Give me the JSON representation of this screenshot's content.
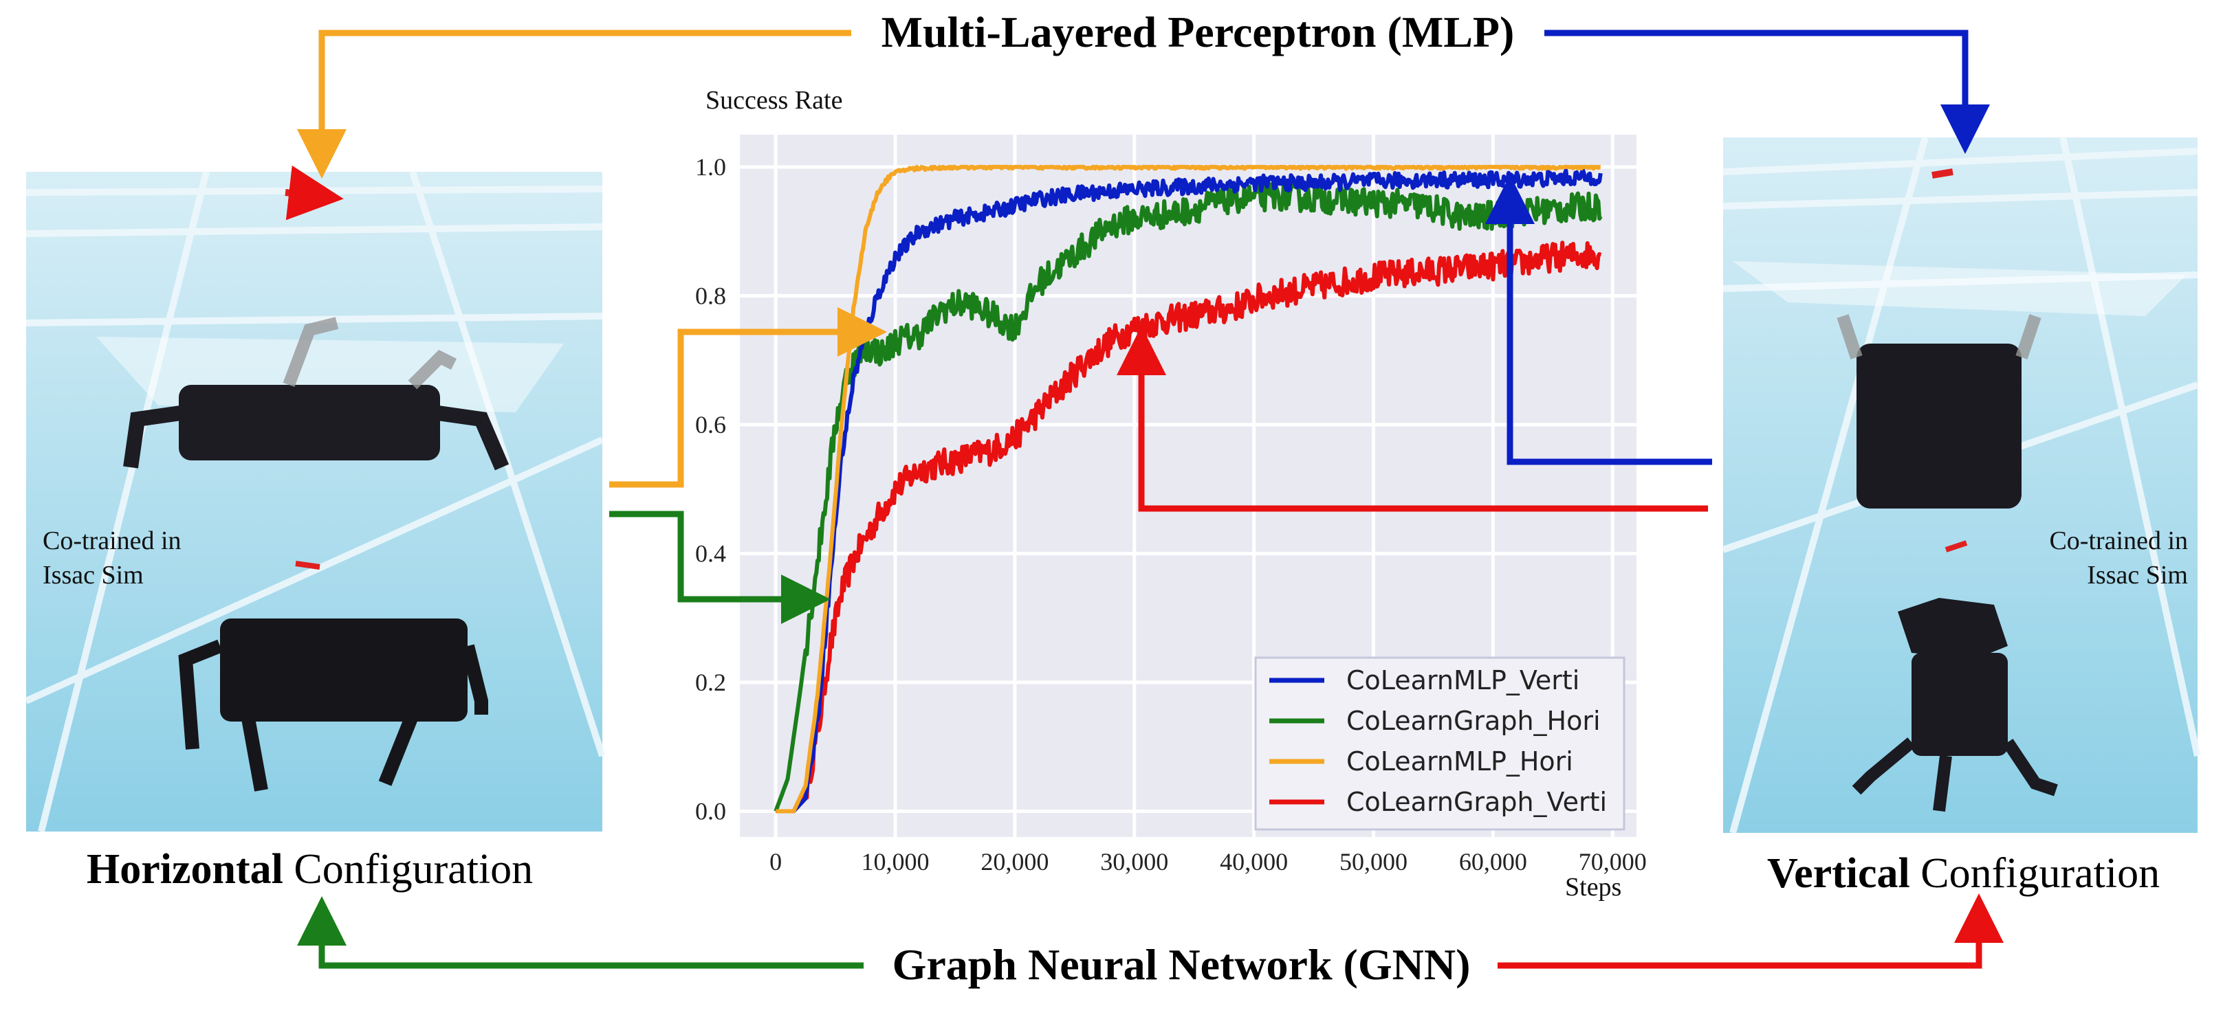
{
  "top_title": "Multi-Layered Perceptron (MLP)",
  "bottom_title": "Graph Neural Network (GNN)",
  "left_panel": {
    "caption_bold": "Horizontal",
    "caption_rest": " Configuration",
    "note_line1": "Co-trained in",
    "note_line2": "Issac Sim"
  },
  "right_panel": {
    "caption_bold": "Vertical",
    "caption_rest": " Configuration",
    "note_line1": "Co-trained in",
    "note_line2": "Issac Sim"
  },
  "colors": {
    "mlp_arrow": "#f5a623",
    "blue": "#0a1fc4",
    "green": "#1a7f1a",
    "red": "#e81010",
    "orange": "#f5a623",
    "plot_bg": "#e9e9f2",
    "sky": "#a9dcec"
  },
  "chart_data": {
    "type": "line",
    "title": "Success Rate",
    "xlabel": "Steps",
    "ylabel": "Success Rate",
    "xlim": [
      -3000,
      72000
    ],
    "ylim": [
      -0.04,
      1.05
    ],
    "xticks": [
      0,
      10000,
      20000,
      30000,
      40000,
      50000,
      60000,
      70000
    ],
    "xtick_labels": [
      "0",
      "10,000",
      "20,000",
      "30,000",
      "40,000",
      "50,000",
      "60,000",
      "70,000"
    ],
    "yticks": [
      0.0,
      0.2,
      0.4,
      0.6,
      0.8,
      1.0
    ],
    "ytick_labels": [
      "0.0",
      "0.2",
      "0.4",
      "0.6",
      "0.8",
      "1.0"
    ],
    "grid": true,
    "legend_position": "bottom-right",
    "series": [
      {
        "name": "CoLearnMLP_Verti",
        "color": "#0a1fc4",
        "x": [
          0,
          1500,
          2500,
          3500,
          4500,
          5500,
          6500,
          7500,
          8500,
          10000,
          12000,
          15000,
          18000,
          22000,
          26000,
          30000,
          35000,
          40000,
          45000,
          50000,
          55000,
          60000,
          65000,
          69000
        ],
        "y": [
          0.0,
          0.0,
          0.02,
          0.14,
          0.35,
          0.55,
          0.67,
          0.74,
          0.8,
          0.86,
          0.9,
          0.92,
          0.93,
          0.95,
          0.96,
          0.965,
          0.97,
          0.975,
          0.975,
          0.978,
          0.98,
          0.98,
          0.982,
          0.985
        ]
      },
      {
        "name": "CoLearnGraph_Hori",
        "color": "#1a7f1a",
        "x": [
          0,
          1000,
          2000,
          3000,
          4000,
          5000,
          6000,
          7000,
          8000,
          9000,
          10000,
          12000,
          14000,
          16000,
          18000,
          20000,
          22000,
          24000,
          26000,
          28000,
          30000,
          34000,
          38000,
          42000,
          46000,
          50000,
          54000,
          58000,
          62000,
          66000,
          69000
        ],
        "y": [
          0.0,
          0.05,
          0.18,
          0.32,
          0.46,
          0.6,
          0.68,
          0.71,
          0.72,
          0.71,
          0.73,
          0.74,
          0.78,
          0.79,
          0.77,
          0.75,
          0.82,
          0.85,
          0.88,
          0.91,
          0.92,
          0.93,
          0.95,
          0.955,
          0.95,
          0.945,
          0.94,
          0.92,
          0.93,
          0.935,
          0.94
        ]
      },
      {
        "name": "CoLearnMLP_Hori",
        "color": "#f5a623",
        "x": [
          0,
          1500,
          2500,
          3500,
          4500,
          5500,
          6500,
          7500,
          8500,
          9500,
          10500,
          12000,
          15000,
          20000,
          30000,
          40000,
          50000,
          60000,
          69000
        ],
        "y": [
          0.0,
          0.0,
          0.04,
          0.18,
          0.38,
          0.6,
          0.78,
          0.9,
          0.96,
          0.985,
          0.995,
          0.998,
          1.0,
          1.0,
          1.0,
          1.0,
          1.0,
          1.0,
          1.0
        ]
      },
      {
        "name": "CoLearnGraph_Verti",
        "color": "#e81010",
        "x": [
          0,
          1500,
          2500,
          3500,
          4500,
          5500,
          6500,
          8000,
          10000,
          12000,
          14000,
          16000,
          18000,
          20000,
          22000,
          24000,
          26000,
          28000,
          30000,
          32000,
          35000,
          38000,
          41000,
          44000,
          47000,
          50000,
          53000,
          56000,
          59000,
          62000,
          65000,
          69000
        ],
        "y": [
          0.0,
          0.0,
          0.03,
          0.12,
          0.25,
          0.34,
          0.39,
          0.44,
          0.5,
          0.53,
          0.54,
          0.55,
          0.56,
          0.58,
          0.62,
          0.66,
          0.7,
          0.73,
          0.75,
          0.76,
          0.77,
          0.78,
          0.8,
          0.81,
          0.82,
          0.83,
          0.835,
          0.84,
          0.845,
          0.85,
          0.86,
          0.865
        ]
      }
    ]
  }
}
